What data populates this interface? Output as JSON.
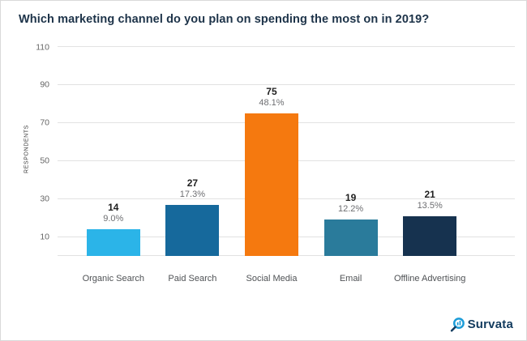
{
  "chart_data": {
    "type": "bar",
    "title": "Which marketing channel do you plan on spending the most on in 2019?",
    "categories": [
      "Organic Search",
      "Paid Search",
      "Social Media",
      "Email",
      "Offline Advertising"
    ],
    "values": [
      14,
      27,
      75,
      19,
      21
    ],
    "percent_labels": [
      "9.0%",
      "17.3%",
      "48.1%",
      "12.2%",
      "13.5%"
    ],
    "colors": [
      "#2bb4e8",
      "#16699c",
      "#f5790f",
      "#2a7b9b",
      "#16324f"
    ],
    "xlabel": "",
    "ylabel": "RESPONDENTS",
    "yticks": [
      10,
      30,
      50,
      70,
      90,
      110
    ],
    "ylim": [
      0,
      113
    ],
    "grid": true,
    "legend": false
  },
  "branding": {
    "logo_text": "Survata",
    "logo_color": "#123b5e",
    "icon_color": "#1b9cd8"
  }
}
